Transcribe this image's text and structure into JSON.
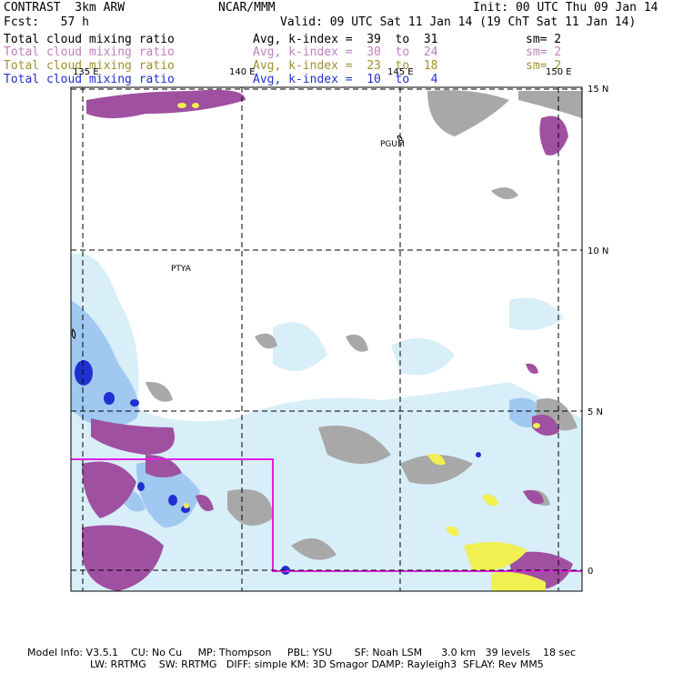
{
  "header": {
    "model": "CONTRAST  3km ARW",
    "center": "NCAR/MMM",
    "init": "Init: 00 UTC Thu 09 Jan 14",
    "fcst": "Fcst:   57 h",
    "valid": "Valid: 09 UTC Sat 11 Jan 14 (19 ChT Sat 11 Jan 14)"
  },
  "fields": [
    {
      "name": "Total cloud mixing ratio",
      "avg": "Avg, k-index =  39  to  31",
      "sm": "sm= 2",
      "color": "#000000"
    },
    {
      "name": "Total cloud mixing ratio",
      "avg": "Avg, k-index =  30  to  24",
      "sm": "sm= 2",
      "color": "#c080c0"
    },
    {
      "name": "Total cloud mixing ratio",
      "avg": "Avg, k-index =  23  to  18",
      "sm": "sm= 2",
      "color": "#a09030"
    },
    {
      "name": "Total cloud mixing ratio",
      "avg": "Avg, k-index =  10  to   4",
      "sm": "",
      "color": "#2030d0"
    }
  ],
  "map": {
    "lon_labels": [
      "135 E",
      "140 E",
      "145 E",
      "150 E"
    ],
    "lat_labels": [
      "15 N",
      "10 N",
      "5 N",
      "0"
    ],
    "stations": [
      "PGUM",
      "PTYA"
    ]
  },
  "footer": {
    "line1": "Model Info: V3.5.1    CU: No Cu     MP: Thompson     PBL: YSU       SF: Noah LSM      3.0 km   39 levels    18 sec",
    "line2": "LW: RRTMG    SW: RRTMG   DIFF: simple KM: 3D Smagor DAMP: Rayleigh3  SFLAY: Rev MM5"
  },
  "colors": {
    "purple": "#a050a0",
    "gray": "#a8a8a8",
    "light_blue": "#d8eef8",
    "mid_blue": "#a0c8f0",
    "dark_blue": "#2030d0",
    "yellow": "#f0f050",
    "magenta_box": "#e020e0"
  }
}
